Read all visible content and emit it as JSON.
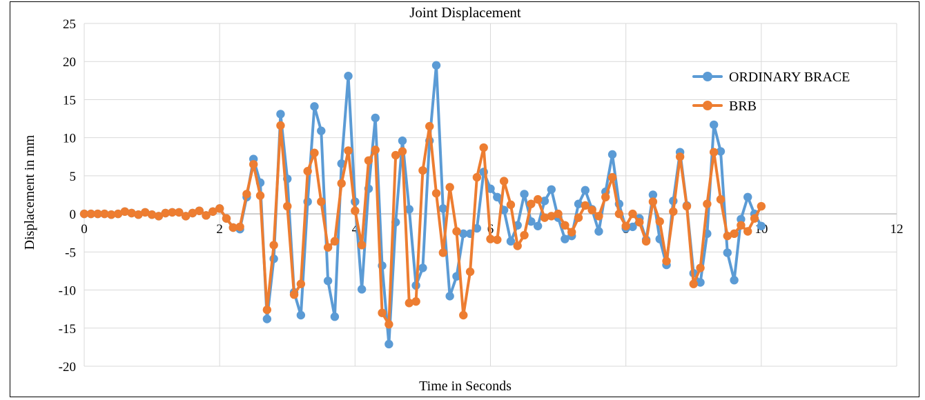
{
  "chart_data": {
    "type": "line",
    "title": "Joint Displacement",
    "xlabel": "Time in Seconds",
    "ylabel": "Displacement in mm",
    "xlim": [
      0,
      12
    ],
    "ylim": [
      -20,
      25
    ],
    "xticks": [
      0,
      2,
      4,
      6,
      8,
      10,
      12
    ],
    "yticks": [
      -20,
      -15,
      -10,
      -5,
      0,
      5,
      10,
      15,
      20,
      25
    ],
    "xtick_labels": [
      "0",
      "2",
      "4",
      "6",
      "8",
      "10",
      "12"
    ],
    "ytick_labels": [
      "-20",
      "-15",
      "-10",
      "-5",
      "0",
      "5",
      "10",
      "15",
      "20",
      "25"
    ],
    "grid": true,
    "legend_position": "top-right",
    "x": [
      0,
      0.1,
      0.2,
      0.3,
      0.4,
      0.5,
      0.6,
      0.7,
      0.8,
      0.9,
      1.0,
      1.1,
      1.2,
      1.3,
      1.4,
      1.5,
      1.6,
      1.7,
      1.8,
      1.9,
      2.0,
      2.1,
      2.2,
      2.3,
      2.4,
      2.5,
      2.6,
      2.7,
      2.8,
      2.9,
      3.0,
      3.1,
      3.2,
      3.3,
      3.4,
      3.5,
      3.6,
      3.7,
      3.8,
      3.9,
      4.0,
      4.1,
      4.2,
      4.3,
      4.4,
      4.5,
      4.6,
      4.7,
      4.8,
      4.9,
      5.0,
      5.1,
      5.2,
      5.3,
      5.4,
      5.5,
      5.6,
      5.7,
      5.8,
      5.9,
      6.0,
      6.1,
      6.2,
      6.3,
      6.4,
      6.5,
      6.6,
      6.7,
      6.8,
      6.9,
      7.0,
      7.1,
      7.2,
      7.3,
      7.4,
      7.5,
      7.6,
      7.7,
      7.8,
      7.9,
      8.0,
      8.1,
      8.2,
      8.3,
      8.4,
      8.5,
      8.6,
      8.7,
      8.8,
      8.9,
      9.0,
      9.1,
      9.2,
      9.3,
      9.4,
      9.5,
      9.6,
      9.7,
      9.8,
      9.9,
      10.0
    ],
    "series": [
      {
        "name": "ORDINARY BRACE",
        "color": "#5B9BD5",
        "values": [
          0,
          0,
          0,
          0,
          -0.1,
          0,
          0.3,
          0.1,
          -0.1,
          0.2,
          -0.1,
          -0.3,
          0.1,
          0.2,
          0.2,
          -0.3,
          0.1,
          0.4,
          -0.2,
          0.3,
          0.7,
          -0.6,
          -1.8,
          -2.0,
          2.2,
          7.2,
          4.1,
          -13.8,
          -5.9,
          13.1,
          4.6,
          -10.3,
          -13.3,
          1.6,
          14.1,
          10.9,
          -8.8,
          -13.5,
          6.6,
          18.1,
          1.6,
          -9.9,
          3.3,
          12.6,
          -6.8,
          -17.1,
          -1.1,
          9.6,
          0.6,
          -9.4,
          -7.1,
          9.6,
          19.5,
          0.7,
          -10.8,
          -8.2,
          -2.6,
          -2.6,
          -1.9,
          5.5,
          3.3,
          2.2,
          0.5,
          -3.6,
          -1.5,
          2.6,
          -1.0,
          -1.6,
          1.7,
          3.2,
          -0.5,
          -3.3,
          -2.9,
          1.3,
          3.1,
          0.6,
          -2.3,
          2.9,
          7.8,
          1.3,
          -1.9,
          -1.7,
          -0.6,
          -3.4,
          2.5,
          -3.3,
          -6.7,
          1.7,
          8.1,
          1.1,
          -7.8,
          -9.0,
          -2.6,
          11.7,
          8.2,
          -5.1,
          -8.7,
          -0.7,
          2.2,
          0,
          -1.6
        ]
      },
      {
        "name": "BRB",
        "color": "#ED7D31",
        "values": [
          0,
          0,
          0,
          0,
          -0.1,
          0,
          0.3,
          0.1,
          -0.1,
          0.2,
          -0.1,
          -0.3,
          0.1,
          0.2,
          0.2,
          -0.3,
          0.1,
          0.4,
          -0.2,
          0.3,
          0.7,
          -0.6,
          -1.8,
          -1.7,
          2.6,
          6.5,
          2.4,
          -12.6,
          -4.1,
          11.6,
          1.0,
          -10.6,
          -9.2,
          5.6,
          8.0,
          1.6,
          -4.4,
          -3.6,
          4.0,
          8.3,
          0.4,
          -4.1,
          7.0,
          8.4,
          -13.0,
          -14.5,
          7.7,
          8.2,
          -11.7,
          -11.5,
          5.7,
          11.5,
          2.7,
          -5.1,
          3.5,
          -2.3,
          -13.3,
          -7.6,
          4.8,
          8.7,
          -3.3,
          -3.4,
          4.3,
          1.2,
          -4.2,
          -2.8,
          1.3,
          1.9,
          -0.5,
          -0.3,
          0,
          -1.5,
          -2.4,
          -0.5,
          1.1,
          0.5,
          -0.3,
          2.2,
          4.8,
          0,
          -1.6,
          0,
          -1.1,
          -3.6,
          1.6,
          -1.0,
          -6.2,
          0.3,
          7.5,
          1.0,
          -9.2,
          -7.1,
          1.3,
          8.1,
          1.9,
          -2.9,
          -2.6,
          -1.5,
          -2.3,
          -0.6,
          1.0
        ]
      }
    ]
  }
}
